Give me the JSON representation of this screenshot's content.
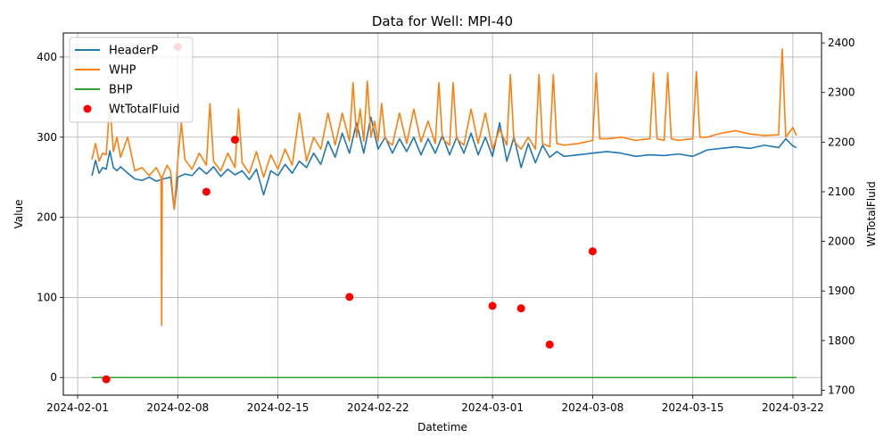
{
  "chart_data": {
    "type": "line",
    "title": "Data for Well: MPI-40",
    "xlabel": "Datetime",
    "ylabel": "Value",
    "y2label": "WtTotalFluid",
    "x_ticks": [
      "2024-02-01",
      "2024-02-08",
      "2024-02-15",
      "2024-02-22",
      "2024-03-01",
      "2024-03-08",
      "2024-03-15",
      "2024-03-22"
    ],
    "y_ticks": [
      0,
      100,
      200,
      300,
      400
    ],
    "y2_ticks": [
      1700,
      1800,
      1900,
      2000,
      2100,
      2200,
      2300,
      2400
    ],
    "xlim": [
      "2024-01-31T00:00",
      "2024-03-24T00:00"
    ],
    "ylim": [
      -22,
      430
    ],
    "y2lim": [
      1690,
      2420
    ],
    "grid": true,
    "legend_position": "top-left",
    "series": [
      {
        "name": "HeaderP",
        "axis": "left",
        "color": "#1f77b4",
        "points": [
          [
            "2024-02-02T00:00",
            252
          ],
          [
            "2024-02-02T06:00",
            271
          ],
          [
            "2024-02-02T12:00",
            255
          ],
          [
            "2024-02-02T18:00",
            262
          ],
          [
            "2024-02-03T00:00",
            260
          ],
          [
            "2024-02-03T06:00",
            283
          ],
          [
            "2024-02-03T12:00",
            262
          ],
          [
            "2024-02-03T18:00",
            258
          ],
          [
            "2024-02-04T00:00",
            263
          ],
          [
            "2024-02-04T12:00",
            255
          ],
          [
            "2024-02-05T00:00",
            248
          ],
          [
            "2024-02-05T12:00",
            246
          ],
          [
            "2024-02-06T00:00",
            250
          ],
          [
            "2024-02-06T12:00",
            245
          ],
          [
            "2024-02-07T00:00",
            248
          ],
          [
            "2024-02-07T12:00",
            250
          ],
          [
            "2024-02-07T18:00",
            210
          ],
          [
            "2024-02-08T00:00",
            250
          ],
          [
            "2024-02-08T12:00",
            254
          ],
          [
            "2024-02-09T00:00",
            252
          ],
          [
            "2024-02-09T12:00",
            262
          ],
          [
            "2024-02-10T00:00",
            254
          ],
          [
            "2024-02-10T12:00",
            263
          ],
          [
            "2024-02-11T00:00",
            251
          ],
          [
            "2024-02-11T12:00",
            260
          ],
          [
            "2024-02-12T00:00",
            253
          ],
          [
            "2024-02-12T12:00",
            258
          ],
          [
            "2024-02-13T00:00",
            247
          ],
          [
            "2024-02-13T12:00",
            260
          ],
          [
            "2024-02-14T00:00",
            228
          ],
          [
            "2024-02-14T12:00",
            258
          ],
          [
            "2024-02-15T00:00",
            252
          ],
          [
            "2024-02-15T12:00",
            266
          ],
          [
            "2024-02-16T00:00",
            255
          ],
          [
            "2024-02-16T12:00",
            270
          ],
          [
            "2024-02-17T00:00",
            262
          ],
          [
            "2024-02-17T12:00",
            280
          ],
          [
            "2024-02-18T00:00",
            266
          ],
          [
            "2024-02-18T12:00",
            295
          ],
          [
            "2024-02-19T00:00",
            275
          ],
          [
            "2024-02-19T12:00",
            305
          ],
          [
            "2024-02-20T00:00",
            280
          ],
          [
            "2024-02-20T12:00",
            318
          ],
          [
            "2024-02-21T00:00",
            280
          ],
          [
            "2024-02-21T12:00",
            325
          ],
          [
            "2024-02-22T00:00",
            285
          ],
          [
            "2024-02-22T12:00",
            300
          ],
          [
            "2024-02-23T00:00",
            280
          ],
          [
            "2024-02-23T12:00",
            298
          ],
          [
            "2024-02-24T00:00",
            282
          ],
          [
            "2024-02-24T12:00",
            300
          ],
          [
            "2024-02-25T00:00",
            278
          ],
          [
            "2024-02-25T12:00",
            298
          ],
          [
            "2024-02-26T00:00",
            280
          ],
          [
            "2024-02-26T12:00",
            302
          ],
          [
            "2024-02-27T00:00",
            278
          ],
          [
            "2024-02-27T12:00",
            300
          ],
          [
            "2024-02-28T00:00",
            280
          ],
          [
            "2024-02-28T12:00",
            305
          ],
          [
            "2024-02-29T00:00",
            278
          ],
          [
            "2024-02-29T12:00",
            300
          ],
          [
            "2024-03-01T00:00",
            276
          ],
          [
            "2024-03-01T12:00",
            318
          ],
          [
            "2024-03-02T00:00",
            270
          ],
          [
            "2024-03-02T12:00",
            300
          ],
          [
            "2024-03-03T00:00",
            262
          ],
          [
            "2024-03-03T12:00",
            292
          ],
          [
            "2024-03-04T00:00",
            268
          ],
          [
            "2024-03-04T12:00",
            290
          ],
          [
            "2024-03-05T00:00",
            275
          ],
          [
            "2024-03-05T12:00",
            282
          ],
          [
            "2024-03-06T00:00",
            276
          ],
          [
            "2024-03-07T00:00",
            278
          ],
          [
            "2024-03-08T00:00",
            280
          ],
          [
            "2024-03-09T00:00",
            282
          ],
          [
            "2024-03-10T00:00",
            280
          ],
          [
            "2024-03-11T00:00",
            276
          ],
          [
            "2024-03-12T00:00",
            278
          ],
          [
            "2024-03-13T00:00",
            277
          ],
          [
            "2024-03-14T00:00",
            279
          ],
          [
            "2024-03-15T00:00",
            276
          ],
          [
            "2024-03-15T12:00",
            280
          ],
          [
            "2024-03-16T00:00",
            284
          ],
          [
            "2024-03-17T00:00",
            286
          ],
          [
            "2024-03-18T00:00",
            288
          ],
          [
            "2024-03-19T00:00",
            286
          ],
          [
            "2024-03-20T00:00",
            290
          ],
          [
            "2024-03-21T00:00",
            287
          ],
          [
            "2024-03-21T12:00",
            298
          ],
          [
            "2024-03-22T00:00",
            289
          ],
          [
            "2024-03-22T06:00",
            287
          ]
        ]
      },
      {
        "name": "WHP",
        "axis": "left",
        "color": "#ff7f0e",
        "points": [
          [
            "2024-02-02T00:00",
            272
          ],
          [
            "2024-02-02T06:00",
            292
          ],
          [
            "2024-02-02T12:00",
            270
          ],
          [
            "2024-02-02T18:00",
            280
          ],
          [
            "2024-02-03T00:00",
            278
          ],
          [
            "2024-02-03T06:00",
            342
          ],
          [
            "2024-02-03T12:00",
            282
          ],
          [
            "2024-02-03T18:00",
            300
          ],
          [
            "2024-02-04T00:00",
            275
          ],
          [
            "2024-02-04T12:00",
            300
          ],
          [
            "2024-02-05T00:00",
            258
          ],
          [
            "2024-02-05T12:00",
            262
          ],
          [
            "2024-02-06T00:00",
            252
          ],
          [
            "2024-02-06T12:00",
            262
          ],
          [
            "2024-02-06T20:00",
            250
          ],
          [
            "2024-02-06T21:00",
            65
          ],
          [
            "2024-02-06T22:00",
            250
          ],
          [
            "2024-02-07T06:00",
            265
          ],
          [
            "2024-02-07T12:00",
            258
          ],
          [
            "2024-02-07T18:00",
            210
          ],
          [
            "2024-02-08T00:00",
            270
          ],
          [
            "2024-02-08T06:00",
            318
          ],
          [
            "2024-02-08T12:00",
            272
          ],
          [
            "2024-02-09T00:00",
            260
          ],
          [
            "2024-02-09T12:00",
            280
          ],
          [
            "2024-02-10T00:00",
            265
          ],
          [
            "2024-02-10T06:00",
            342
          ],
          [
            "2024-02-10T12:00",
            270
          ],
          [
            "2024-02-11T00:00",
            258
          ],
          [
            "2024-02-11T12:00",
            280
          ],
          [
            "2024-02-12T00:00",
            262
          ],
          [
            "2024-02-12T06:00",
            335
          ],
          [
            "2024-02-12T12:00",
            268
          ],
          [
            "2024-02-13T00:00",
            255
          ],
          [
            "2024-02-13T12:00",
            282
          ],
          [
            "2024-02-14T00:00",
            250
          ],
          [
            "2024-02-14T12:00",
            278
          ],
          [
            "2024-02-15T00:00",
            260
          ],
          [
            "2024-02-15T12:00",
            285
          ],
          [
            "2024-02-16T00:00",
            265
          ],
          [
            "2024-02-16T12:00",
            330
          ],
          [
            "2024-02-17T00:00",
            270
          ],
          [
            "2024-02-17T12:00",
            300
          ],
          [
            "2024-02-18T00:00",
            285
          ],
          [
            "2024-02-18T12:00",
            330
          ],
          [
            "2024-02-19T00:00",
            290
          ],
          [
            "2024-02-19T12:00",
            330
          ],
          [
            "2024-02-20T00:00",
            295
          ],
          [
            "2024-02-20T06:00",
            368
          ],
          [
            "2024-02-20T12:00",
            300
          ],
          [
            "2024-02-20T18:00",
            335
          ],
          [
            "2024-02-21T00:00",
            295
          ],
          [
            "2024-02-21T06:00",
            370
          ],
          [
            "2024-02-21T12:00",
            300
          ],
          [
            "2024-02-21T18:00",
            320
          ],
          [
            "2024-02-22T00:00",
            295
          ],
          [
            "2024-02-22T06:00",
            342
          ],
          [
            "2024-02-22T12:00",
            298
          ],
          [
            "2024-02-23T00:00",
            290
          ],
          [
            "2024-02-23T12:00",
            330
          ],
          [
            "2024-02-24T00:00",
            292
          ],
          [
            "2024-02-24T12:00",
            335
          ],
          [
            "2024-02-25T00:00",
            294
          ],
          [
            "2024-02-25T12:00",
            320
          ],
          [
            "2024-02-26T00:00",
            292
          ],
          [
            "2024-02-26T06:00",
            368
          ],
          [
            "2024-02-26T12:00",
            298
          ],
          [
            "2024-02-27T00:00",
            290
          ],
          [
            "2024-02-27T06:00",
            368
          ],
          [
            "2024-02-27T12:00",
            298
          ],
          [
            "2024-02-28T00:00",
            290
          ],
          [
            "2024-02-28T12:00",
            335
          ],
          [
            "2024-02-29T00:00",
            292
          ],
          [
            "2024-02-29T12:00",
            330
          ],
          [
            "2024-03-01T00:00",
            285
          ],
          [
            "2024-03-01T12:00",
            310
          ],
          [
            "2024-03-02T00:00",
            290
          ],
          [
            "2024-03-02T06:00",
            378
          ],
          [
            "2024-03-02T12:00",
            295
          ],
          [
            "2024-03-03T00:00",
            285
          ],
          [
            "2024-03-03T12:00",
            300
          ],
          [
            "2024-03-04T00:00",
            285
          ],
          [
            "2024-03-04T06:00",
            378
          ],
          [
            "2024-03-04T12:00",
            292
          ],
          [
            "2024-03-05T00:00",
            288
          ],
          [
            "2024-03-05T06:00",
            378
          ],
          [
            "2024-03-05T12:00",
            292
          ],
          [
            "2024-03-06T00:00",
            290
          ],
          [
            "2024-03-07T00:00",
            292
          ],
          [
            "2024-03-08T00:00",
            296
          ],
          [
            "2024-03-08T06:00",
            380
          ],
          [
            "2024-03-08T12:00",
            298
          ],
          [
            "2024-03-09T00:00",
            298
          ],
          [
            "2024-03-10T00:00",
            300
          ],
          [
            "2024-03-11T00:00",
            296
          ],
          [
            "2024-03-12T00:00",
            298
          ],
          [
            "2024-03-12T06:00",
            380
          ],
          [
            "2024-03-12T12:00",
            298
          ],
          [
            "2024-03-13T00:00",
            296
          ],
          [
            "2024-03-13T06:00",
            380
          ],
          [
            "2024-03-13T12:00",
            298
          ],
          [
            "2024-03-14T00:00",
            296
          ],
          [
            "2024-03-15T00:00",
            298
          ],
          [
            "2024-03-15T06:00",
            382
          ],
          [
            "2024-03-15T12:00",
            300
          ],
          [
            "2024-03-16T00:00",
            300
          ],
          [
            "2024-03-17T00:00",
            305
          ],
          [
            "2024-03-18T00:00",
            308
          ],
          [
            "2024-03-19T00:00",
            304
          ],
          [
            "2024-03-20T00:00",
            302
          ],
          [
            "2024-03-21T00:00",
            303
          ],
          [
            "2024-03-21T06:00",
            410
          ],
          [
            "2024-03-21T12:00",
            300
          ],
          [
            "2024-03-22T00:00",
            312
          ],
          [
            "2024-03-22T06:00",
            302
          ]
        ]
      },
      {
        "name": "BHP",
        "axis": "left",
        "color": "#2ca02c",
        "points": [
          [
            "2024-02-02T00:00",
            0
          ],
          [
            "2024-03-22T06:00",
            0
          ]
        ]
      },
      {
        "name": "WtTotalFluid",
        "axis": "right",
        "color": "#ff0000",
        "marker": "scatter",
        "points": [
          [
            "2024-02-03T00:00",
            1722
          ],
          [
            "2024-02-08T00:00",
            2392
          ],
          [
            "2024-02-10T00:00",
            2100
          ],
          [
            "2024-02-12T00:00",
            2205
          ],
          [
            "2024-02-20T00:00",
            1888
          ],
          [
            "2024-03-01T00:00",
            1870
          ],
          [
            "2024-03-03T00:00",
            1865
          ],
          [
            "2024-03-05T00:00",
            1792
          ],
          [
            "2024-03-08T00:00",
            1980
          ]
        ]
      }
    ]
  }
}
